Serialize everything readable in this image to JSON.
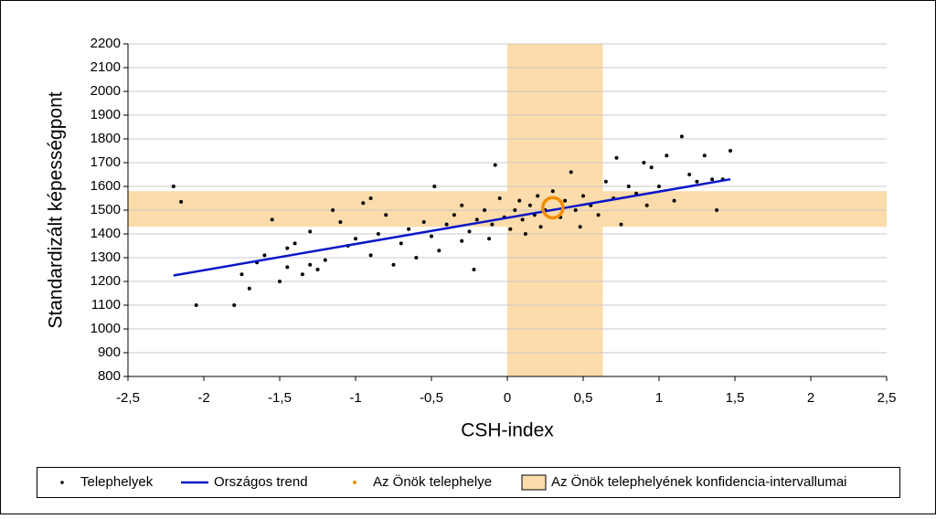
{
  "chart_data": {
    "type": "scatter",
    "x_label": "CSH-index",
    "y_label": "Standardizált képességpont",
    "xlim": [
      -2.5,
      2.5
    ],
    "xticks": [
      {
        "value": -2.5,
        "label": "-2,5"
      },
      -2,
      {
        "value": -1.5,
        "label": "-1,5"
      },
      -1,
      {
        "value": -0.5,
        "label": "-0,5"
      },
      0,
      {
        "value": 0.5,
        "label": "0,5"
      },
      1,
      {
        "value": 1.5,
        "label": "1,5"
      },
      2,
      {
        "value": 2.5,
        "label": "2,5"
      }
    ],
    "ylim": [
      800,
      2200
    ],
    "yticks": [
      800,
      900,
      1000,
      1100,
      1200,
      1300,
      1400,
      1500,
      1600,
      1700,
      1800,
      1900,
      2000,
      2100,
      2200
    ],
    "grid": true,
    "band": {
      "name": "Az Önök telephelyének konfidencia-intervallumai",
      "color": "#fbdcaa",
      "x_range": [
        0,
        0.63
      ],
      "y_range": [
        1430,
        1580
      ]
    },
    "series": [
      {
        "name": "Telephelyek",
        "color": "#000000",
        "kind": "points",
        "x": [
          -2.2,
          -2.15,
          -2.05,
          -1.8,
          -1.75,
          -1.7,
          -1.65,
          -1.6,
          -1.55,
          -1.5,
          -1.45,
          -1.45,
          -1.4,
          -1.35,
          -1.3,
          -1.3,
          -1.25,
          -1.2,
          -1.15,
          -1.1,
          -1.05,
          -1.0,
          -0.95,
          -0.9,
          -0.9,
          -0.85,
          -0.8,
          -0.75,
          -0.7,
          -0.65,
          -0.6,
          -0.55,
          -0.5,
          -0.48,
          -0.45,
          -0.4,
          -0.35,
          -0.3,
          -0.3,
          -0.25,
          -0.22,
          -0.2,
          -0.15,
          -0.12,
          -0.1,
          -0.08,
          -0.05,
          -0.02,
          0.02,
          0.05,
          0.08,
          0.1,
          0.12,
          0.15,
          0.18,
          0.2,
          0.22,
          0.25,
          0.3,
          0.35,
          0.38,
          0.42,
          0.45,
          0.48,
          0.5,
          0.55,
          0.6,
          0.65,
          0.7,
          0.72,
          0.75,
          0.8,
          0.85,
          0.9,
          0.92,
          0.95,
          1.0,
          1.05,
          1.1,
          1.15,
          1.2,
          1.25,
          1.3,
          1.35,
          1.38,
          1.42,
          1.47
        ],
        "values": [
          1600,
          1535,
          1100,
          1100,
          1230,
          1170,
          1280,
          1310,
          1460,
          1200,
          1260,
          1340,
          1360,
          1230,
          1270,
          1410,
          1250,
          1290,
          1500,
          1450,
          1350,
          1380,
          1530,
          1550,
          1310,
          1400,
          1480,
          1270,
          1360,
          1420,
          1300,
          1450,
          1390,
          1600,
          1330,
          1440,
          1480,
          1370,
          1520,
          1410,
          1250,
          1460,
          1500,
          1380,
          1440,
          1690,
          1550,
          1470,
          1420,
          1500,
          1540,
          1460,
          1400,
          1520,
          1480,
          1560,
          1430,
          1500,
          1580,
          1470,
          1540,
          1660,
          1500,
          1430,
          1560,
          1520,
          1480,
          1620,
          1550,
          1720,
          1440,
          1600,
          1570,
          1700,
          1520,
          1680,
          1600,
          1730,
          1540,
          1810,
          1650,
          1620,
          1730,
          1630,
          1500,
          1630,
          1750
        ]
      },
      {
        "name": "Országos trend",
        "color": "#0a17c8",
        "kind": "line",
        "x": [
          -2.2,
          1.47
        ],
        "values": [
          1225,
          1630
        ]
      },
      {
        "name": "Az Önök telephelye",
        "color": "#f28c00",
        "kind": "own",
        "x": [
          0.3
        ],
        "values": [
          1510
        ]
      }
    ]
  }
}
